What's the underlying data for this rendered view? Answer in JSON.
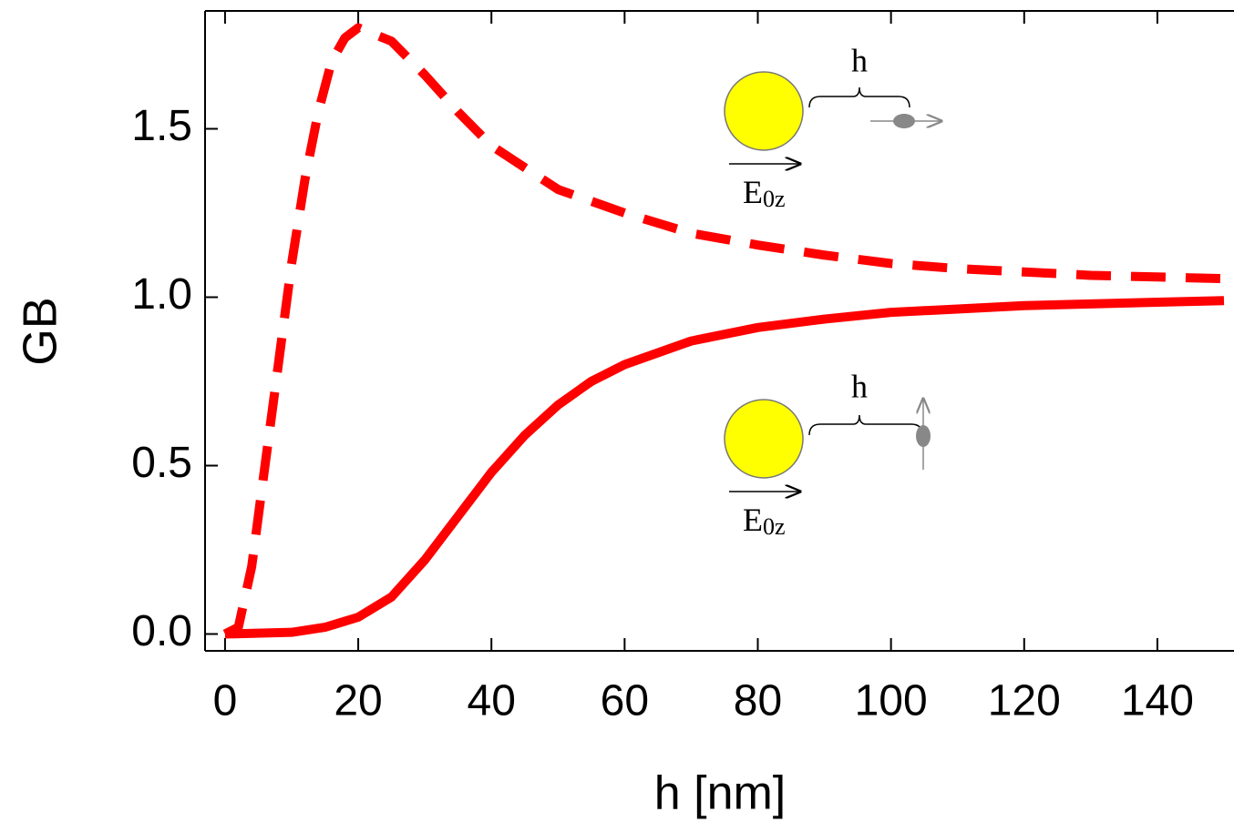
{
  "chart_data": {
    "type": "line",
    "x_label": "h [nm]",
    "y_label": "GB",
    "xlim": [
      -3,
      151
    ],
    "ylim": [
      -0.05,
      1.85
    ],
    "xticks": [
      0,
      20,
      40,
      60,
      80,
      100,
      120,
      140
    ],
    "yticks": [
      {
        "value": 0,
        "label": "0.0"
      },
      0.5,
      {
        "value": 1,
        "label": "1.0"
      },
      1.5
    ],
    "grid": false,
    "series": [
      {
        "color": "#ff0000",
        "line_style": "dashed",
        "x": [
          0,
          2,
          4,
          6,
          8,
          10,
          12,
          14,
          16,
          18,
          20,
          25,
          30,
          35,
          40,
          50,
          60,
          70,
          80,
          90,
          100,
          110,
          120,
          130,
          140,
          150
        ],
        "values": [
          0,
          0.02,
          0.2,
          0.5,
          0.8,
          1.1,
          1.35,
          1.55,
          1.7,
          1.77,
          1.8,
          1.76,
          1.66,
          1.55,
          1.45,
          1.32,
          1.25,
          1.19,
          1.155,
          1.125,
          1.1,
          1.085,
          1.075,
          1.065,
          1.06,
          1.055
        ]
      },
      {
        "color": "#ff0000",
        "line_style": "solid",
        "x": [
          0,
          10,
          15,
          20,
          25,
          30,
          35,
          40,
          45,
          50,
          55,
          60,
          70,
          80,
          90,
          100,
          110,
          120,
          130,
          140,
          150
        ],
        "values": [
          0,
          0.005,
          0.02,
          0.05,
          0.11,
          0.22,
          0.35,
          0.48,
          0.59,
          0.68,
          0.75,
          0.8,
          0.87,
          0.91,
          0.935,
          0.955,
          0.965,
          0.975,
          0.98,
          0.985,
          0.99
        ]
      }
    ],
    "annotations": [
      {
        "distance": "h",
        "field": "E",
        "field_subscript": "0z"
      },
      {
        "distance": "h",
        "field": "E",
        "field_subscript": "0z"
      }
    ]
  }
}
